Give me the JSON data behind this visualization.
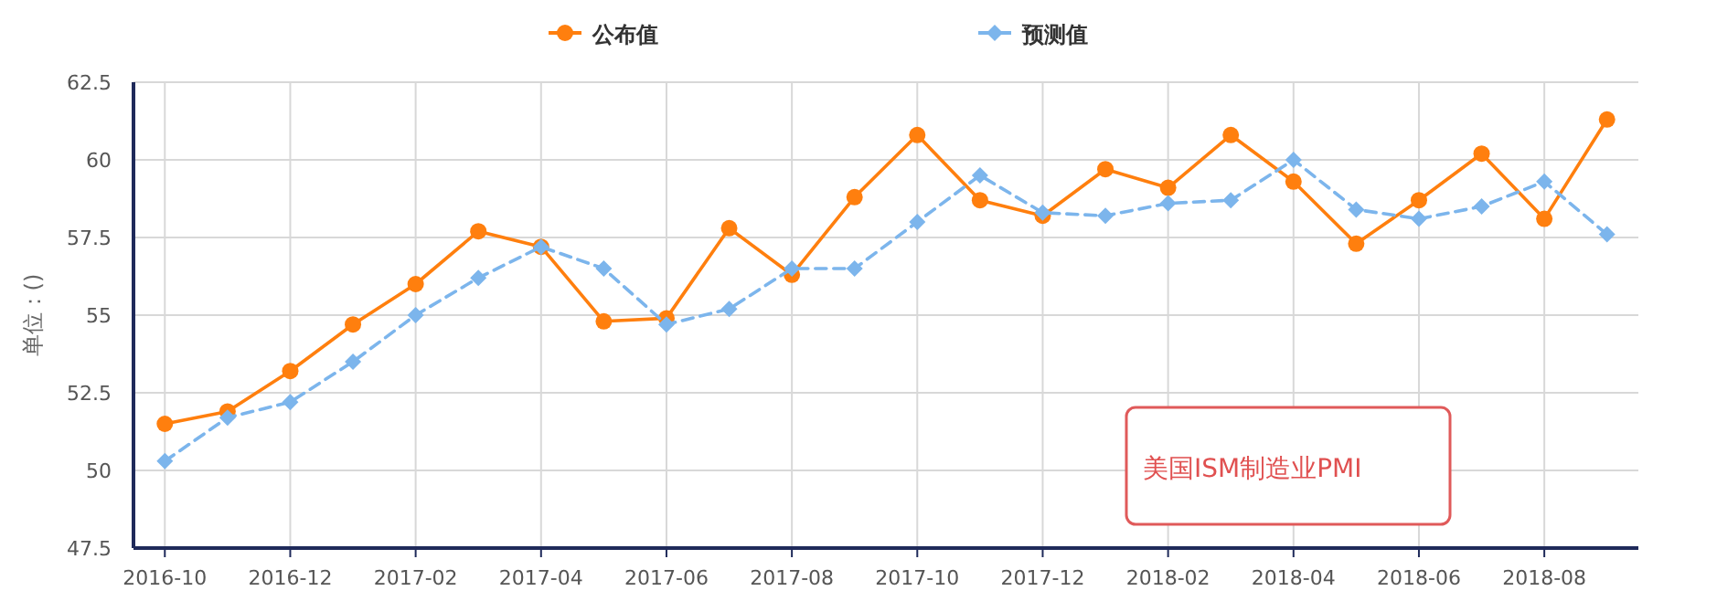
{
  "chart_data": {
    "type": "line",
    "ylabel": "单位：()",
    "categories": [
      "2016-10",
      null,
      "2016-12",
      null,
      "2017-02",
      null,
      "2017-04",
      null,
      "2017-06",
      null,
      "2017-08",
      null,
      "2017-10",
      null,
      "2017-12",
      null,
      "2018-02",
      null,
      "2018-04",
      null,
      "2018-06",
      null,
      "2018-08",
      null
    ],
    "series": [
      {
        "name": "公布值",
        "color": "#ff7f0e",
        "marker": "circle",
        "line_style": "solid",
        "values": [
          51.5,
          51.9,
          53.2,
          54.7,
          56.0,
          57.7,
          57.2,
          54.8,
          54.9,
          57.8,
          56.3,
          58.8,
          60.8,
          58.7,
          58.2,
          59.7,
          59.1,
          60.8,
          59.3,
          57.3,
          58.7,
          60.2,
          58.1,
          61.3
        ]
      },
      {
        "name": "预测值",
        "color": "#7cb5ec",
        "marker": "diamond",
        "line_style": "dashed",
        "values": [
          50.3,
          51.7,
          52.2,
          53.5,
          55.0,
          56.2,
          57.2,
          56.5,
          54.7,
          55.2,
          56.5,
          56.5,
          58.0,
          59.5,
          58.3,
          58.2,
          58.6,
          58.7,
          60.0,
          58.4,
          58.1,
          58.5,
          59.3,
          57.6
        ]
      }
    ],
    "ylim": [
      47.5,
      62.5
    ],
    "yticks": [
      47.5,
      50,
      52.5,
      55,
      57.5,
      60,
      62.5
    ],
    "grid": true,
    "legend": "top",
    "annotations": [
      "美国ISM制造业PMI"
    ]
  }
}
